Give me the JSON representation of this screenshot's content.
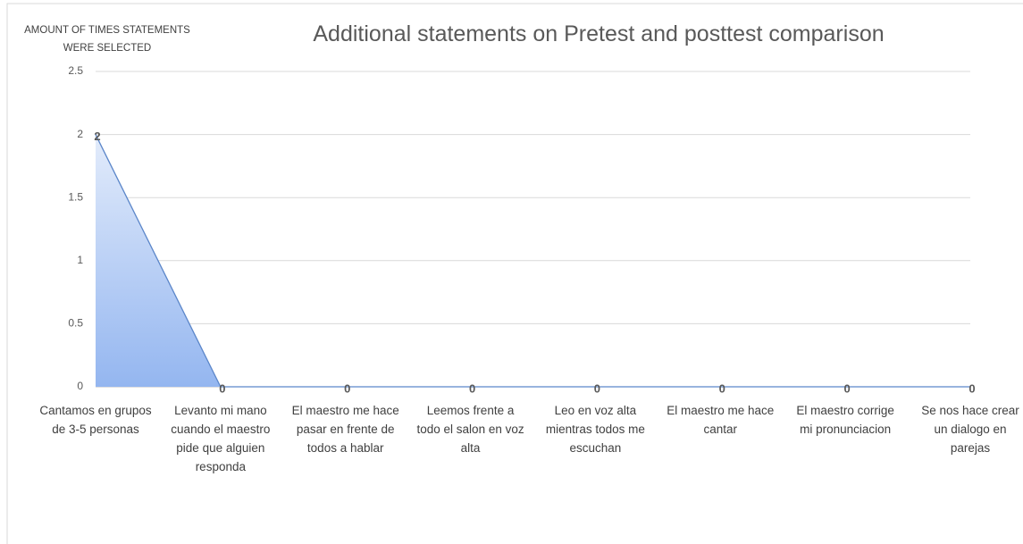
{
  "chart_data": {
    "type": "area",
    "title": "Additional statements on Pretest and posttest comparison",
    "y_label": "AMOUNT OF TIMES STATEMENTS WERE SELECTED",
    "categories": [
      "Cantamos en grupos de 3-5 personas",
      "Levanto mi mano cuando el maestro pide que alguien responda",
      "El maestro me hace pasar en frente de todos a hablar",
      "Leemos frente a todo el salon en voz alta",
      "Leo en voz alta mientras todos me escuchan",
      "El maestro me hace cantar",
      "El maestro corrige mi pronunciacion",
      "Se nos hace crear un dialogo en parejas"
    ],
    "values": [
      2,
      0,
      0,
      0,
      0,
      0,
      0,
      0
    ],
    "color": "#5b86c9",
    "ylim": [
      0,
      2.5
    ],
    "yticks": [
      0,
      0.5,
      1,
      1.5,
      2,
      2.5
    ],
    "grid": true
  }
}
